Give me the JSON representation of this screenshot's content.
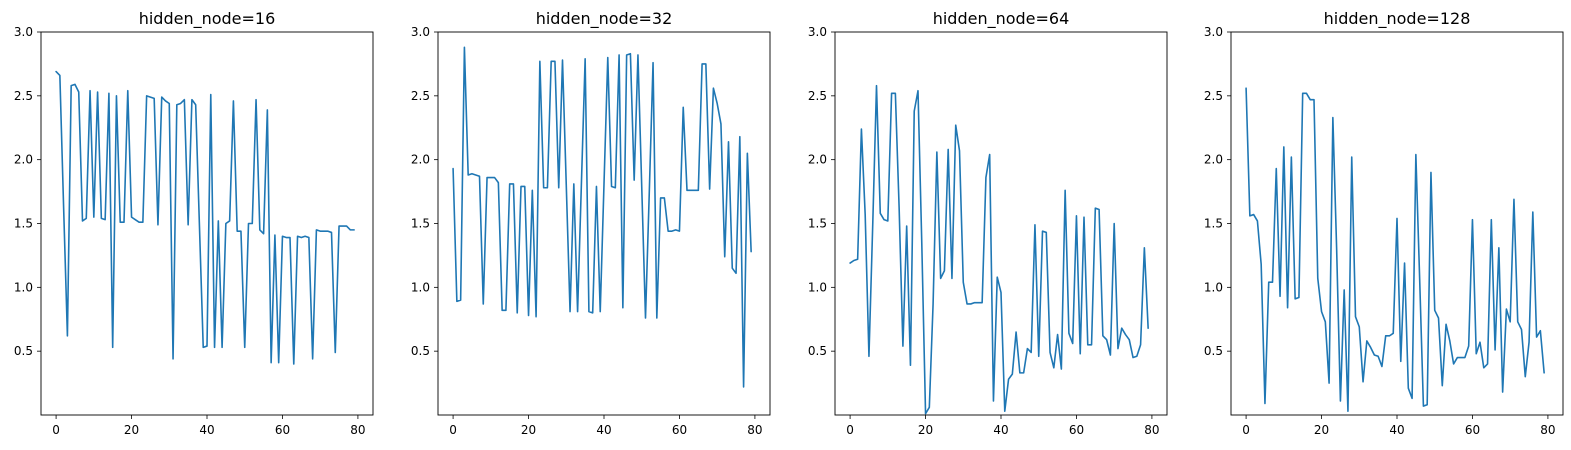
{
  "chart_data": [
    {
      "type": "line",
      "title": "hidden_node=16",
      "xlabel": "",
      "ylabel": "",
      "xlim": [
        -4,
        84
      ],
      "ylim": [
        0.0,
        3.0
      ],
      "xticks": [
        0,
        20,
        40,
        60,
        80
      ],
      "yticks": [
        0.5,
        1.0,
        1.5,
        2.0,
        2.5,
        3.0
      ],
      "xtick_labels": [
        "0",
        "20",
        "40",
        "60",
        "80"
      ],
      "ytick_labels": [
        "0.5",
        "1.0",
        "1.5",
        "2.0",
        "2.5",
        "3.0"
      ],
      "grid": false,
      "color": "#1f77b4",
      "series": [
        {
          "x": [
            0,
            1,
            2,
            3,
            4,
            5,
            6,
            7,
            8,
            9,
            10,
            11,
            12,
            13,
            14,
            15,
            16,
            17,
            18,
            19,
            20,
            21,
            22,
            23,
            24,
            25,
            26,
            27,
            28,
            29,
            30,
            31,
            32,
            33,
            34,
            35,
            36,
            37,
            38,
            39,
            40,
            41,
            42,
            43,
            44,
            45,
            46,
            47,
            48,
            49,
            50,
            51,
            52,
            53,
            54,
            55,
            56,
            57,
            58,
            59,
            60,
            61,
            62,
            63,
            64,
            65,
            66,
            67,
            68,
            69,
            70,
            71,
            72,
            73,
            74,
            75,
            76,
            77,
            78,
            79
          ],
          "y": [
            2.69,
            2.66,
            1.62,
            0.62,
            2.58,
            2.59,
            2.53,
            1.52,
            1.54,
            2.54,
            1.55,
            2.53,
            1.54,
            1.53,
            2.52,
            0.53,
            2.5,
            1.51,
            1.51,
            2.54,
            1.55,
            1.53,
            1.51,
            1.51,
            2.5,
            2.49,
            2.48,
            1.49,
            2.49,
            2.46,
            2.44,
            0.44,
            2.43,
            2.44,
            2.47,
            1.49,
            2.47,
            2.43,
            1.48,
            0.53,
            0.54,
            2.51,
            0.53,
            1.52,
            0.53,
            1.5,
            1.52,
            2.46,
            1.44,
            1.44,
            0.53,
            1.5,
            1.5,
            2.47,
            1.45,
            1.42,
            2.39,
            0.41,
            1.41,
            0.41,
            1.4,
            1.39,
            1.39,
            0.4,
            1.4,
            1.39,
            1.4,
            1.39,
            0.44,
            1.45,
            1.44,
            1.44,
            1.44,
            1.43,
            0.49,
            1.48,
            1.48,
            1.48,
            1.45,
            1.45
          ]
        }
      ]
    },
    {
      "type": "line",
      "title": "hidden_node=32",
      "xlabel": "",
      "ylabel": "",
      "xlim": [
        -4,
        84
      ],
      "ylim": [
        0.0,
        3.0
      ],
      "xticks": [
        0,
        20,
        40,
        60,
        80
      ],
      "yticks": [
        0.5,
        1.0,
        1.5,
        2.0,
        2.5,
        3.0
      ],
      "xtick_labels": [
        "0",
        "20",
        "40",
        "60",
        "80"
      ],
      "ytick_labels": [
        "0.5",
        "1.0",
        "1.5",
        "2.0",
        "2.5",
        "3.0"
      ],
      "grid": false,
      "color": "#1f77b4",
      "series": [
        {
          "x": [
            0,
            1,
            2,
            3,
            4,
            5,
            6,
            7,
            8,
            9,
            10,
            11,
            12,
            13,
            14,
            15,
            16,
            17,
            18,
            19,
            20,
            21,
            22,
            23,
            24,
            25,
            26,
            27,
            28,
            29,
            30,
            31,
            32,
            33,
            34,
            35,
            36,
            37,
            38,
            39,
            40,
            41,
            42,
            43,
            44,
            45,
            46,
            47,
            48,
            49,
            50,
            51,
            52,
            53,
            54,
            55,
            56,
            57,
            58,
            59,
            60,
            61,
            62,
            63,
            64,
            65,
            66,
            67,
            68,
            69,
            70,
            71,
            72,
            73,
            74,
            75,
            76,
            77,
            78,
            79
          ],
          "y": [
            1.93,
            0.89,
            0.9,
            2.88,
            1.88,
            1.89,
            1.88,
            1.87,
            0.87,
            1.86,
            1.86,
            1.86,
            1.82,
            0.82,
            0.82,
            1.81,
            1.81,
            0.8,
            1.79,
            1.79,
            0.78,
            1.76,
            0.77,
            2.77,
            1.78,
            1.78,
            2.77,
            2.77,
            1.78,
            2.78,
            1.8,
            0.81,
            1.81,
            0.81,
            1.8,
            2.79,
            0.81,
            0.8,
            1.79,
            0.81,
            1.81,
            2.8,
            1.79,
            1.78,
            2.82,
            0.84,
            2.82,
            2.83,
            1.84,
            2.82,
            1.79,
            0.76,
            1.74,
            2.76,
            0.76,
            1.7,
            1.7,
            1.44,
            1.44,
            1.45,
            1.44,
            2.41,
            1.76,
            1.76,
            1.76,
            1.76,
            2.75,
            2.75,
            1.77,
            2.56,
            2.44,
            2.28,
            1.24,
            2.14,
            1.15,
            1.11,
            2.18,
            0.22,
            2.05,
            1.28
          ]
        }
      ]
    },
    {
      "type": "line",
      "title": "hidden_node=64",
      "xlabel": "",
      "ylabel": "",
      "xlim": [
        -4,
        84
      ],
      "ylim": [
        0.0,
        3.0
      ],
      "xticks": [
        0,
        20,
        40,
        60,
        80
      ],
      "yticks": [
        0.5,
        1.0,
        1.5,
        2.0,
        2.5,
        3.0
      ],
      "xtick_labels": [
        "0",
        "20",
        "40",
        "60",
        "80"
      ],
      "ytick_labels": [
        "0.5",
        "1.0",
        "1.5",
        "2.0",
        "2.5",
        "3.0"
      ],
      "grid": false,
      "color": "#1f77b4",
      "series": [
        {
          "x": [
            0,
            1,
            2,
            3,
            4,
            5,
            6,
            7,
            8,
            9,
            10,
            11,
            12,
            13,
            14,
            15,
            16,
            17,
            18,
            19,
            20,
            21,
            22,
            23,
            24,
            25,
            26,
            27,
            28,
            29,
            30,
            31,
            32,
            33,
            34,
            35,
            36,
            37,
            38,
            39,
            40,
            41,
            42,
            43,
            44,
            45,
            46,
            47,
            48,
            49,
            50,
            51,
            52,
            53,
            54,
            55,
            56,
            57,
            58,
            59,
            60,
            61,
            62,
            63,
            64,
            65,
            66,
            67,
            68,
            69,
            70,
            71,
            72,
            73,
            74,
            75,
            76,
            77,
            78,
            79
          ],
          "y": [
            1.19,
            1.21,
            1.22,
            2.24,
            1.57,
            0.46,
            1.49,
            2.58,
            1.58,
            1.53,
            1.52,
            2.52,
            2.52,
            1.62,
            0.54,
            1.48,
            0.39,
            2.38,
            2.54,
            1.35,
            0.01,
            0.06,
            0.87,
            2.06,
            1.07,
            1.13,
            2.08,
            1.07,
            2.27,
            2.07,
            1.04,
            0.87,
            0.87,
            0.88,
            0.88,
            0.88,
            1.86,
            2.04,
            0.11,
            1.08,
            0.96,
            0.03,
            0.28,
            0.32,
            0.65,
            0.33,
            0.33,
            0.52,
            0.49,
            1.49,
            0.46,
            1.44,
            1.43,
            0.49,
            0.37,
            0.63,
            0.36,
            1.76,
            0.64,
            0.56,
            1.56,
            0.48,
            1.55,
            0.55,
            0.55,
            1.62,
            1.61,
            0.62,
            0.59,
            0.47,
            1.5,
            0.52,
            0.68,
            0.63,
            0.59,
            0.45,
            0.46,
            0.55,
            1.31,
            0.68
          ]
        }
      ]
    },
    {
      "type": "line",
      "title": "hidden_node=128",
      "xlabel": "",
      "ylabel": "",
      "xlim": [
        -4,
        84
      ],
      "ylim": [
        0.0,
        3.0
      ],
      "xticks": [
        0,
        20,
        40,
        60,
        80
      ],
      "yticks": [
        0.5,
        1.0,
        1.5,
        2.0,
        2.5,
        3.0
      ],
      "xtick_labels": [
        "0",
        "20",
        "40",
        "60",
        "80"
      ],
      "ytick_labels": [
        "0.5",
        "1.0",
        "1.5",
        "2.0",
        "2.5",
        "3.0"
      ],
      "grid": false,
      "color": "#1f77b4",
      "series": [
        {
          "x": [
            0,
            1,
            2,
            3,
            4,
            5,
            6,
            7,
            8,
            9,
            10,
            11,
            12,
            13,
            14,
            15,
            16,
            17,
            18,
            19,
            20,
            21,
            22,
            23,
            24,
            25,
            26,
            27,
            28,
            29,
            30,
            31,
            32,
            33,
            34,
            35,
            36,
            37,
            38,
            39,
            40,
            41,
            42,
            43,
            44,
            45,
            46,
            47,
            48,
            49,
            50,
            51,
            52,
            53,
            54,
            55,
            56,
            57,
            58,
            59,
            60,
            61,
            62,
            63,
            64,
            65,
            66,
            67,
            68,
            69,
            70,
            71,
            72,
            73,
            74,
            75,
            76,
            77,
            78,
            79
          ],
          "y": [
            2.56,
            1.56,
            1.57,
            1.52,
            1.18,
            0.09,
            1.04,
            1.04,
            1.93,
            0.93,
            2.1,
            0.84,
            2.02,
            0.91,
            0.92,
            2.52,
            2.52,
            2.47,
            2.47,
            1.07,
            0.81,
            0.73,
            0.25,
            2.33,
            1.3,
            0.11,
            0.98,
            0.03,
            2.02,
            0.77,
            0.69,
            0.26,
            0.58,
            0.53,
            0.47,
            0.46,
            0.38,
            0.62,
            0.62,
            0.64,
            1.54,
            0.42,
            1.19,
            0.21,
            0.13,
            2.04,
            1.07,
            0.07,
            0.08,
            1.9,
            0.82,
            0.76,
            0.23,
            0.71,
            0.58,
            0.4,
            0.45,
            0.45,
            0.45,
            0.54,
            1.53,
            0.48,
            0.57,
            0.37,
            0.4,
            1.53,
            0.51,
            1.31,
            0.18,
            0.83,
            0.73,
            1.69,
            0.73,
            0.67,
            0.3,
            0.57,
            1.59,
            0.61,
            0.66,
            0.33
          ]
        }
      ]
    }
  ]
}
